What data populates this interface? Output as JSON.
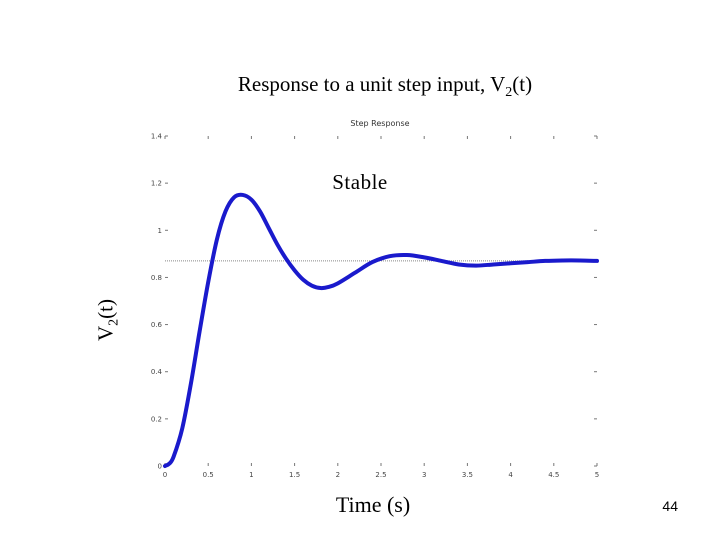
{
  "slide": {
    "title_main": "Response to a unit step input, V",
    "title_sub": "2",
    "title_end": "(t)",
    "annotation": "Stable",
    "page_number": "44"
  },
  "chart_data": {
    "type": "line",
    "title": "Step Response",
    "xlabel": "Time (s)",
    "ylabel_main": "V",
    "ylabel_sub": "2",
    "ylabel_end": "(t)",
    "xlim": [
      0,
      5
    ],
    "ylim": [
      0,
      1.4
    ],
    "xticks": [
      "0",
      "0.5",
      "1",
      "1.5",
      "2",
      "2.5",
      "3",
      "3.5",
      "4",
      "4.5",
      "5"
    ],
    "yticks": [
      "0",
      "0.2",
      "0.4",
      "0.6",
      "0.8",
      "1",
      "1.2",
      "1.4"
    ],
    "steady_state": 0.87,
    "line_color": "#1a1acc",
    "reference_color": "#888888",
    "series": [
      {
        "x": [
          0,
          0.05,
          0.1,
          0.2,
          0.3,
          0.4,
          0.5,
          0.6,
          0.7,
          0.8,
          0.9,
          1.0,
          1.1,
          1.2,
          1.3,
          1.4,
          1.5,
          1.6,
          1.7,
          1.8,
          1.9,
          2.0,
          2.2,
          2.4,
          2.6,
          2.8,
          3.0,
          3.2,
          3.4,
          3.6,
          3.8,
          4.0,
          4.2,
          4.4,
          4.6,
          4.8,
          5.0
        ],
        "y": [
          0,
          0.01,
          0.04,
          0.16,
          0.35,
          0.57,
          0.78,
          0.96,
          1.08,
          1.14,
          1.15,
          1.13,
          1.08,
          1.01,
          0.94,
          0.88,
          0.83,
          0.79,
          0.765,
          0.755,
          0.76,
          0.775,
          0.82,
          0.865,
          0.89,
          0.895,
          0.885,
          0.87,
          0.855,
          0.85,
          0.855,
          0.86,
          0.865,
          0.87,
          0.872,
          0.872,
          0.87
        ]
      }
    ]
  }
}
